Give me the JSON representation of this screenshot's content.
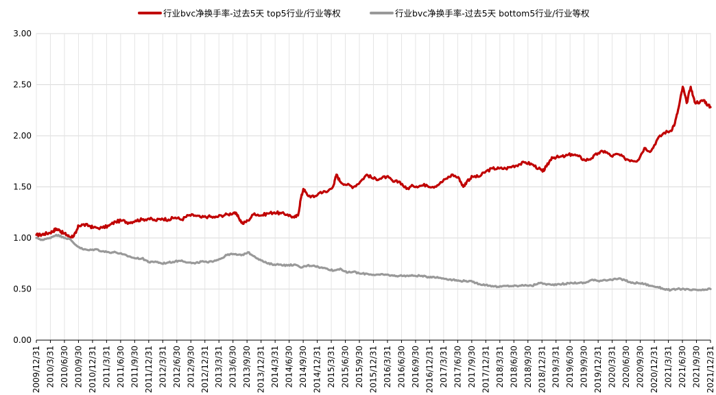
{
  "chart_data": {
    "type": "line",
    "title": "",
    "xlabel": "",
    "ylabel": "",
    "ylim": [
      0,
      3
    ],
    "y_ticks": [
      "0.00",
      "0.50",
      "1.00",
      "1.50",
      "2.00",
      "2.50",
      "3.00"
    ],
    "grid": "on",
    "legend_position": "top",
    "x_ticks": [
      "2009/12/31",
      "2010/3/31",
      "2010/6/30",
      "2010/9/30",
      "2010/12/31",
      "2011/3/31",
      "2011/6/30",
      "2011/9/30",
      "2011/12/31",
      "2012/3/31",
      "2012/6/30",
      "2012/9/30",
      "2012/12/31",
      "2013/3/31",
      "2013/6/30",
      "2013/9/30",
      "2013/12/31",
      "2014/3/31",
      "2014/6/30",
      "2014/9/30",
      "2014/12/31",
      "2015/3/31",
      "2015/6/30",
      "2015/9/30",
      "2015/12/31",
      "2016/3/31",
      "2016/6/30",
      "2016/9/30",
      "2016/12/31",
      "2017/3/31",
      "2017/6/30",
      "2017/9/30",
      "2017/12/31",
      "2018/3/31",
      "2018/6/30",
      "2018/9/30",
      "2018/12/31",
      "2019/3/31",
      "2019/6/30",
      "2019/9/30",
      "2019/12/31",
      "2020/3/31",
      "2020/6/30",
      "2020/9/30",
      "2020/12/31",
      "2021/3/31",
      "2021/6/30",
      "2021/9/30",
      "2021/12/31"
    ],
    "series": [
      {
        "name": "行业bvc净换手率-过去5天 top5行业/行业等权",
        "color": "#c00000",
        "points": [
          [
            0,
            1.03
          ],
          [
            0.3,
            1.03
          ],
          [
            0.6,
            1.04
          ],
          [
            1,
            1.05
          ],
          [
            1.3,
            1.07
          ],
          [
            1.5,
            1.09
          ],
          [
            1.8,
            1.07
          ],
          [
            2,
            1.05
          ],
          [
            2.3,
            1.03
          ],
          [
            2.5,
            1.01
          ],
          [
            2.8,
            1.02
          ],
          [
            3,
            1.05
          ],
          [
            3.2,
            1.12
          ],
          [
            3.5,
            1.13
          ],
          [
            4,
            1.12
          ],
          [
            4.3,
            1.1
          ],
          [
            5,
            1.1
          ],
          [
            5.5,
            1.12
          ],
          [
            6,
            1.16
          ],
          [
            6.5,
            1.17
          ],
          [
            7,
            1.15
          ],
          [
            7.5,
            1.17
          ],
          [
            8,
            1.18
          ],
          [
            8.5,
            1.19
          ],
          [
            9,
            1.17
          ],
          [
            9.5,
            1.19
          ],
          [
            10,
            1.18
          ],
          [
            10.5,
            1.2
          ],
          [
            11,
            1.18
          ],
          [
            11.5,
            1.22
          ],
          [
            12,
            1.22
          ],
          [
            12.5,
            1.2
          ],
          [
            13,
            1.21
          ],
          [
            13.5,
            1.2
          ],
          [
            14,
            1.22
          ],
          [
            14.5,
            1.23
          ],
          [
            15,
            1.25
          ],
          [
            15.3,
            1.2
          ],
          [
            15.6,
            1.14
          ],
          [
            16,
            1.17
          ],
          [
            16.5,
            1.24
          ],
          [
            17,
            1.22
          ],
          [
            17.5,
            1.24
          ],
          [
            18,
            1.25
          ],
          [
            18.5,
            1.24
          ],
          [
            19,
            1.23
          ],
          [
            19.5,
            1.2
          ],
          [
            19.8,
            1.22
          ],
          [
            20,
            1.38
          ],
          [
            20.2,
            1.48
          ],
          [
            20.5,
            1.42
          ],
          [
            21,
            1.4
          ],
          [
            21.5,
            1.45
          ],
          [
            22,
            1.45
          ],
          [
            22.5,
            1.52
          ],
          [
            22.7,
            1.62
          ],
          [
            23,
            1.55
          ],
          [
            23.5,
            1.52
          ],
          [
            24,
            1.5
          ],
          [
            24.5,
            1.55
          ],
          [
            25,
            1.62
          ],
          [
            25.5,
            1.58
          ],
          [
            26,
            1.58
          ],
          [
            26.5,
            1.6
          ],
          [
            27,
            1.55
          ],
          [
            27.5,
            1.55
          ],
          [
            28,
            1.48
          ],
          [
            28.5,
            1.51
          ],
          [
            29,
            1.51
          ],
          [
            29.5,
            1.52
          ],
          [
            30,
            1.5
          ],
          [
            30.5,
            1.53
          ],
          [
            31,
            1.58
          ],
          [
            31.5,
            1.62
          ],
          [
            32,
            1.58
          ],
          [
            32.3,
            1.5
          ],
          [
            32.6,
            1.56
          ],
          [
            33,
            1.6
          ],
          [
            33.5,
            1.6
          ],
          [
            34,
            1.65
          ],
          [
            34.5,
            1.68
          ],
          [
            35,
            1.68
          ],
          [
            35.5,
            1.68
          ],
          [
            36,
            1.7
          ],
          [
            36.5,
            1.72
          ],
          [
            37,
            1.74
          ],
          [
            37.5,
            1.72
          ],
          [
            38,
            1.68
          ],
          [
            38.3,
            1.65
          ],
          [
            38.6,
            1.7
          ],
          [
            39,
            1.79
          ],
          [
            39.5,
            1.79
          ],
          [
            40,
            1.8
          ],
          [
            40.5,
            1.82
          ],
          [
            41,
            1.8
          ],
          [
            41.5,
            1.76
          ],
          [
            42,
            1.78
          ],
          [
            42.5,
            1.83
          ],
          [
            43,
            1.85
          ],
          [
            43.5,
            1.8
          ],
          [
            44,
            1.82
          ],
          [
            44.5,
            1.78
          ],
          [
            45,
            1.76
          ],
          [
            45.5,
            1.76
          ],
          [
            46,
            1.88
          ],
          [
            46.5,
            1.85
          ],
          [
            47,
            1.97
          ],
          [
            47.5,
            2.03
          ],
          [
            48,
            2.05
          ],
          [
            48.3,
            2.12
          ],
          [
            48.6,
            2.28
          ],
          [
            48.9,
            2.48
          ],
          [
            49.2,
            2.32
          ],
          [
            49.5,
            2.48
          ],
          [
            49.8,
            2.33
          ],
          [
            50.2,
            2.33
          ],
          [
            50.5,
            2.35
          ],
          [
            50.8,
            2.3
          ],
          [
            51,
            2.28
          ]
        ]
      },
      {
        "name": "行业bvc净换手率-过去5天 bottom5行业/行业等权",
        "color": "#999999",
        "points": [
          [
            0,
            1.0
          ],
          [
            0.5,
            0.98
          ],
          [
            1,
            1.0
          ],
          [
            1.5,
            1.03
          ],
          [
            2,
            1.01
          ],
          [
            2.5,
            0.99
          ],
          [
            3,
            0.93
          ],
          [
            3.5,
            0.89
          ],
          [
            4,
            0.88
          ],
          [
            4.5,
            0.89
          ],
          [
            5,
            0.87
          ],
          [
            5.5,
            0.86
          ],
          [
            6,
            0.86
          ],
          [
            6.5,
            0.84
          ],
          [
            7,
            0.82
          ],
          [
            7.5,
            0.8
          ],
          [
            8,
            0.8
          ],
          [
            8.3,
            0.78
          ],
          [
            8.6,
            0.76
          ],
          [
            9,
            0.77
          ],
          [
            9.5,
            0.75
          ],
          [
            10,
            0.76
          ],
          [
            10.5,
            0.77
          ],
          [
            11,
            0.78
          ],
          [
            11.5,
            0.76
          ],
          [
            12,
            0.75
          ],
          [
            12.5,
            0.77
          ],
          [
            13,
            0.76
          ],
          [
            13.5,
            0.78
          ],
          [
            14,
            0.8
          ],
          [
            14.5,
            0.84
          ],
          [
            15,
            0.84
          ],
          [
            15.5,
            0.83
          ],
          [
            16,
            0.86
          ],
          [
            16.5,
            0.82
          ],
          [
            17,
            0.78
          ],
          [
            17.5,
            0.75
          ],
          [
            18,
            0.74
          ],
          [
            18.5,
            0.74
          ],
          [
            19,
            0.73
          ],
          [
            19.5,
            0.74
          ],
          [
            20,
            0.71
          ],
          [
            20.5,
            0.73
          ],
          [
            21,
            0.73
          ],
          [
            21.5,
            0.71
          ],
          [
            22,
            0.7
          ],
          [
            22.5,
            0.68
          ],
          [
            23,
            0.7
          ],
          [
            23.5,
            0.66
          ],
          [
            24,
            0.67
          ],
          [
            24.5,
            0.65
          ],
          [
            25,
            0.65
          ],
          [
            25.5,
            0.64
          ],
          [
            26,
            0.64
          ],
          [
            26.5,
            0.64
          ],
          [
            27,
            0.63
          ],
          [
            27.5,
            0.63
          ],
          [
            28,
            0.63
          ],
          [
            28.5,
            0.63
          ],
          [
            29,
            0.63
          ],
          [
            29.5,
            0.62
          ],
          [
            30,
            0.62
          ],
          [
            30.5,
            0.61
          ],
          [
            31,
            0.6
          ],
          [
            31.5,
            0.59
          ],
          [
            32,
            0.58
          ],
          [
            32.5,
            0.58
          ],
          [
            33,
            0.57
          ],
          [
            33.5,
            0.55
          ],
          [
            34,
            0.54
          ],
          [
            34.5,
            0.53
          ],
          [
            35,
            0.52
          ],
          [
            35.5,
            0.53
          ],
          [
            36,
            0.53
          ],
          [
            36.5,
            0.53
          ],
          [
            37,
            0.54
          ],
          [
            37.5,
            0.53
          ],
          [
            38,
            0.56
          ],
          [
            38.5,
            0.55
          ],
          [
            39,
            0.54
          ],
          [
            39.5,
            0.55
          ],
          [
            40,
            0.55
          ],
          [
            40.5,
            0.56
          ],
          [
            41,
            0.56
          ],
          [
            41.5,
            0.56
          ],
          [
            42,
            0.59
          ],
          [
            42.5,
            0.58
          ],
          [
            43,
            0.59
          ],
          [
            43.5,
            0.59
          ],
          [
            44,
            0.6
          ],
          [
            44.5,
            0.59
          ],
          [
            45,
            0.56
          ],
          [
            45.5,
            0.56
          ],
          [
            46,
            0.55
          ],
          [
            46.5,
            0.53
          ],
          [
            47,
            0.52
          ],
          [
            47.5,
            0.5
          ],
          [
            48,
            0.49
          ],
          [
            48.5,
            0.5
          ],
          [
            49,
            0.5
          ],
          [
            49.5,
            0.49
          ],
          [
            50,
            0.49
          ],
          [
            50.5,
            0.49
          ],
          [
            51,
            0.5
          ]
        ]
      }
    ]
  }
}
